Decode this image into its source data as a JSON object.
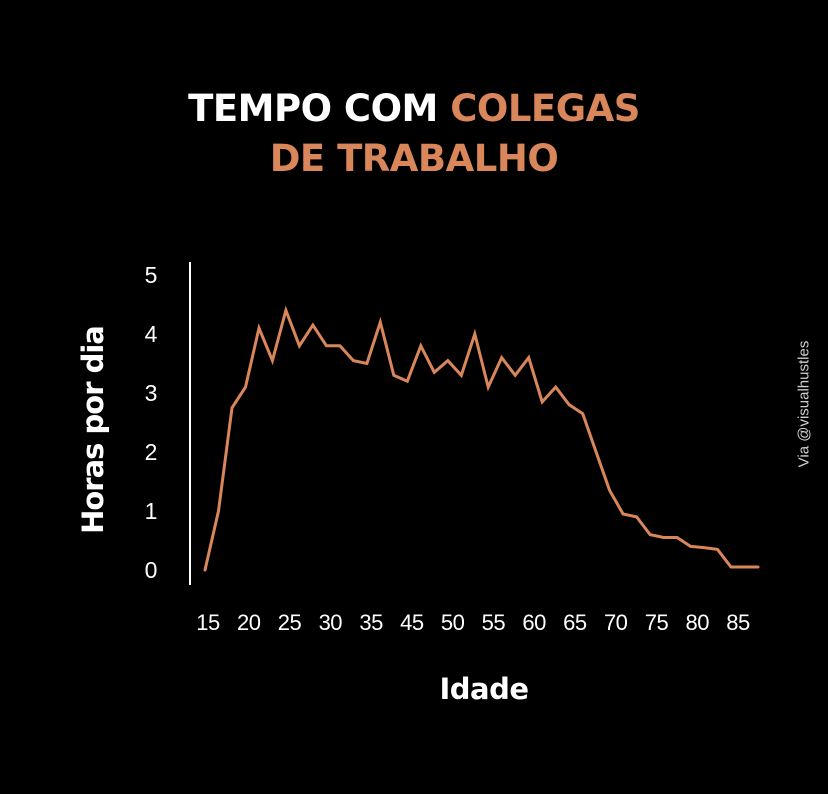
{
  "title": {
    "part1": "TEMPO COM ",
    "part2": "COLEGAS",
    "line2": "DE TRABALHO"
  },
  "credit": "Via @visualhustles",
  "colors": {
    "background": "#000000",
    "text": "#ffffff",
    "accent": "#d9865a",
    "line": "#d9865a",
    "axis": "#ffffff"
  },
  "chart_data": {
    "type": "line",
    "xlabel": "Idade",
    "ylabel": "Horas por dia",
    "ylim": [
      0,
      5
    ],
    "y_ticks": [
      "0",
      "1",
      "2",
      "3",
      "4",
      "5"
    ],
    "x_ticks": [
      "15",
      "20",
      "25",
      "30",
      "35",
      "45",
      "50",
      "55",
      "60",
      "65",
      "70",
      "75",
      "80",
      "85"
    ],
    "grid": false,
    "legend": "none",
    "series": [
      {
        "values": [
          0.0,
          1.0,
          2.75,
          3.1,
          4.1,
          3.55,
          4.4,
          3.8,
          4.15,
          3.8,
          3.8,
          3.55,
          3.5,
          4.2,
          3.3,
          3.2,
          3.8,
          3.35,
          3.55,
          3.3,
          4.0,
          3.1,
          3.6,
          3.3,
          3.6,
          2.85,
          3.1,
          2.8,
          2.65,
          2.0,
          1.35,
          0.95,
          0.9,
          0.6,
          0.55,
          0.55,
          0.4,
          0.38,
          0.35,
          0.05,
          0.05,
          0.05
        ]
      }
    ]
  }
}
